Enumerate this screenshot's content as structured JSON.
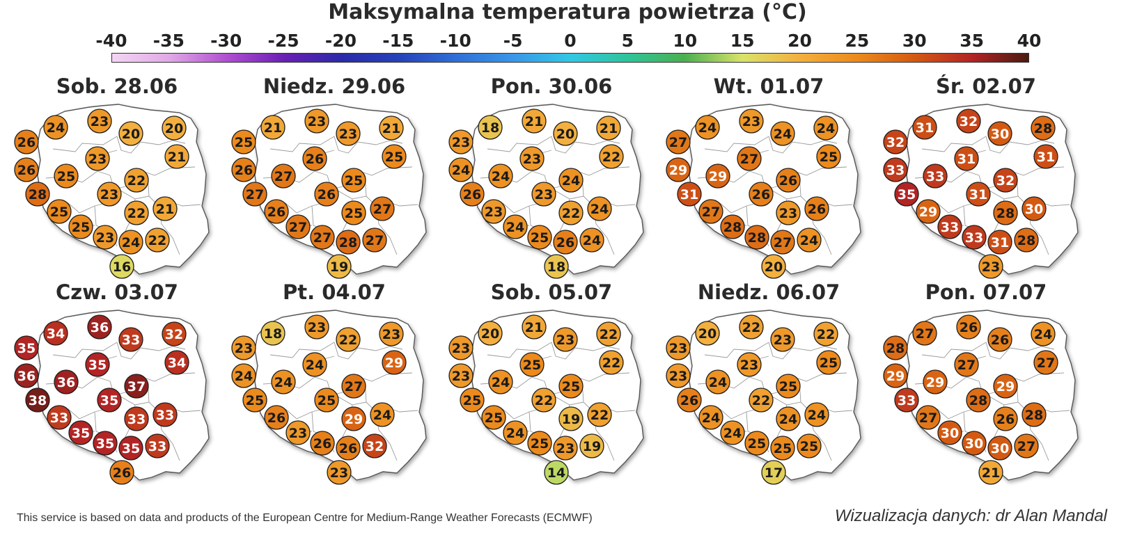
{
  "title": "Maksymalna temperatura powietrza (°C)",
  "colorbar": {
    "ticks": [
      "-40",
      "-35",
      "-30",
      "-25",
      "-20",
      "-15",
      "-10",
      "-5",
      "0",
      "5",
      "10",
      "15",
      "20",
      "25",
      "30",
      "35",
      "40"
    ],
    "range": [
      -40,
      40
    ],
    "stops": [
      {
        "v": -40,
        "c": "#f3d6f3"
      },
      {
        "v": -35,
        "c": "#e1a8e6"
      },
      {
        "v": -30,
        "c": "#b04fd1"
      },
      {
        "v": -25,
        "c": "#6a1fb5"
      },
      {
        "v": -20,
        "c": "#2b2aa8"
      },
      {
        "v": -15,
        "c": "#2642b8"
      },
      {
        "v": -10,
        "c": "#2f6fd6"
      },
      {
        "v": -5,
        "c": "#3a96e8"
      },
      {
        "v": 0,
        "c": "#32c7e4"
      },
      {
        "v": 5,
        "c": "#2ec49a"
      },
      {
        "v": 10,
        "c": "#4caf50"
      },
      {
        "v": 15,
        "c": "#d9e36a"
      },
      {
        "v": 20,
        "c": "#f3b03e"
      },
      {
        "v": 25,
        "c": "#ec8a1c"
      },
      {
        "v": 30,
        "c": "#d45a12"
      },
      {
        "v": 35,
        "c": "#b32424"
      },
      {
        "v": 40,
        "c": "#4a1a12"
      }
    ]
  },
  "maps": [
    {
      "label": "Sob. 28.06",
      "values": [
        24,
        23,
        20,
        20,
        26,
        23,
        21,
        26,
        25,
        22,
        28,
        23,
        21,
        25,
        22,
        25,
        23,
        24,
        22,
        16
      ]
    },
    {
      "label": "Niedz. 29.06",
      "values": [
        21,
        23,
        23,
        21,
        25,
        26,
        25,
        26,
        27,
        25,
        27,
        26,
        27,
        26,
        25,
        27,
        27,
        28,
        27,
        19
      ]
    },
    {
      "label": "Pon. 30.06",
      "values": [
        18,
        21,
        20,
        21,
        23,
        23,
        22,
        24,
        24,
        24,
        26,
        23,
        24,
        23,
        22,
        24,
        25,
        26,
        24,
        18
      ]
    },
    {
      "label": "Wt. 01.07",
      "values": [
        24,
        23,
        24,
        24,
        27,
        27,
        25,
        29,
        29,
        26,
        31,
        26,
        26,
        27,
        23,
        28,
        28,
        27,
        24,
        20
      ]
    },
    {
      "label": "Śr. 02.07",
      "values": [
        31,
        32,
        30,
        28,
        32,
        31,
        31,
        33,
        33,
        32,
        35,
        31,
        30,
        29,
        28,
        33,
        33,
        31,
        28,
        23
      ]
    },
    {
      "label": "Czw. 03.07",
      "values": [
        34,
        36,
        33,
        32,
        35,
        35,
        34,
        36,
        36,
        37,
        38,
        35,
        33,
        33,
        33,
        35,
        35,
        35,
        33,
        26
      ]
    },
    {
      "label": "Pt. 04.07",
      "values": [
        18,
        23,
        22,
        23,
        23,
        24,
        29,
        24,
        24,
        27,
        25,
        25,
        24,
        26,
        29,
        23,
        26,
        26,
        32,
        23
      ]
    },
    {
      "label": "Sob. 05.07",
      "values": [
        20,
        21,
        23,
        22,
        23,
        25,
        22,
        23,
        24,
        25,
        25,
        22,
        22,
        25,
        19,
        24,
        25,
        23,
        19,
        14
      ]
    },
    {
      "label": "Niedz. 06.07",
      "values": [
        20,
        22,
        23,
        22,
        23,
        23,
        25,
        23,
        24,
        25,
        26,
        22,
        24,
        24,
        24,
        24,
        25,
        25,
        25,
        17
      ]
    },
    {
      "label": "Pon. 07.07",
      "values": [
        27,
        26,
        26,
        24,
        28,
        27,
        27,
        29,
        29,
        29,
        33,
        28,
        28,
        27,
        26,
        30,
        30,
        30,
        27,
        21
      ]
    }
  ],
  "footer": {
    "left": "This service is based on data and products of the European Centre for Medium-Range Weather Forecasts (ECMWF)",
    "right": "Wizualizacja danych: dr Alan Mandal"
  }
}
